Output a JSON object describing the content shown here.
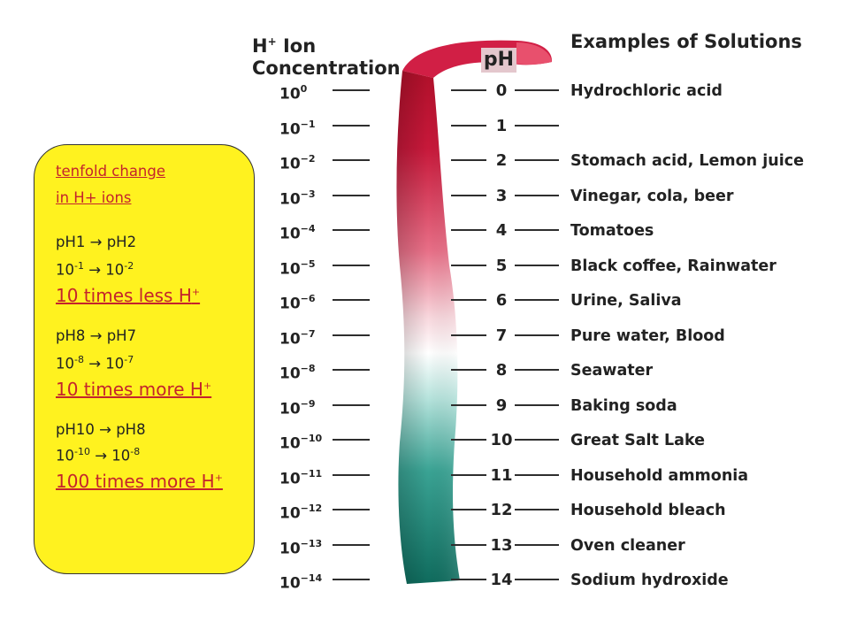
{
  "headers": {
    "concentration_line1": "H",
    "concentration_sup": "+",
    "concentration_line1_suffix": " Ion",
    "concentration_line2": "Concentration",
    "ph": "pH",
    "examples": "Examples of Solutions"
  },
  "scale": {
    "base": "10",
    "exponents": [
      "0",
      "−1",
      "−2",
      "−3",
      "−4",
      "−5",
      "−6",
      "−7",
      "−8",
      "−9",
      "−10",
      "−11",
      "−12",
      "−13",
      "−14"
    ],
    "ph_values": [
      "0",
      "1",
      "2",
      "3",
      "4",
      "5",
      "6",
      "7",
      "8",
      "9",
      "10",
      "11",
      "12",
      "13",
      "14"
    ]
  },
  "examples": [
    "Hydrochloric acid",
    "",
    "Stomach acid, Lemon juice",
    "Vinegar, cola, beer",
    "Tomatoes",
    "Black coffee, Rainwater",
    "Urine, Saliva",
    "Pure water, Blood",
    "Seawater",
    "Baking soda",
    "Great Salt Lake",
    "Household ammonia",
    "Household bleach",
    "Oven cleaner",
    "Sodium hydroxide"
  ],
  "info_box": {
    "title_line1": "tenfold change",
    "title_line2": "in H+ ions",
    "ex1_ph": "pH1 → pH2",
    "ex1_conc_base1": "10",
    "ex1_conc_exp1": "-1",
    "ex1_arrow": " → ",
    "ex1_conc_base2": "10",
    "ex1_conc_exp2": "-2",
    "ex1_result": "10 times less H",
    "ex2_ph": "pH8 → pH7",
    "ex2_conc_base1": "10",
    "ex2_conc_exp1": "-8",
    "ex2_arrow": " → ",
    "ex2_conc_base2": "10",
    "ex2_conc_exp2": "-7",
    "ex2_result": "10 times more H",
    "ex3_ph": "pH10 → pH8",
    "ex3_conc_base1": "10",
    "ex3_conc_exp1": "-10",
    "ex3_arrow": " → ",
    "ex3_conc_base2": "10",
    "ex3_conc_exp2": "-8",
    "ex3_result": "100 times more H",
    "plus": "+"
  },
  "colors": {
    "acid": "#c41230",
    "neutral": "#ffffff",
    "base": "#127a6a",
    "box": "#fff21f",
    "highlight_red": "#c4242c"
  }
}
